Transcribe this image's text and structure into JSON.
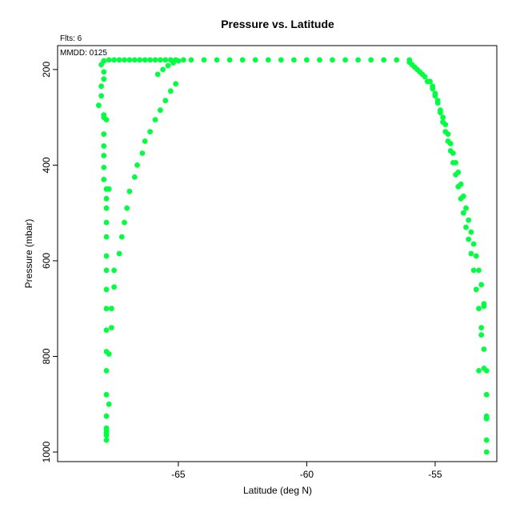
{
  "chart_data": {
    "type": "scatter",
    "title": "Pressure vs. Latitude",
    "subtitle_flts": "Flts: 6",
    "subtitle_mmdd": "MMDD: 0125",
    "xlabel": "Latitude (deg N)",
    "ylabel": "Pressure (mbar)",
    "xlim": [
      -69.7,
      -52.6
    ],
    "ylim": [
      1020,
      150
    ],
    "y_reversed": true,
    "xticks": [
      -65,
      -60,
      -55
    ],
    "yticks": [
      200,
      400,
      600,
      800,
      1000
    ],
    "grid": false,
    "point_color": "#00ff40",
    "series": [
      {
        "x": [
          -68.0,
          -68.1,
          -68.0,
          -68.0,
          -67.9,
          -67.9,
          -67.9,
          -67.9,
          -67.9,
          -67.9,
          -67.9,
          -67.9,
          -67.9,
          -67.8,
          -67.8,
          -67.8,
          -67.8,
          -67.8,
          -67.8,
          -67.8,
          -67.8,
          -67.8,
          -67.8,
          -67.8,
          -67.8,
          -67.8,
          -67.8,
          -67.8,
          -67.8,
          -67.8
        ],
        "y": [
          190,
          275,
          255,
          235,
          220,
          205,
          295,
          300,
          335,
          360,
          380,
          405,
          430,
          450,
          470,
          490,
          520,
          550,
          590,
          620,
          660,
          700,
          745,
          790,
          830,
          880,
          925,
          950,
          965,
          975
        ]
      },
      {
        "x": [
          -67.8,
          -67.8,
          -67.8,
          -67.7,
          -67.7,
          -67.7,
          -67.6,
          -67.6,
          -67.5,
          -67.5,
          -67.3,
          -67.2,
          -67.1,
          -67.0,
          -66.9,
          -66.7,
          -66.6,
          -66.4,
          -66.3,
          -66.1,
          -65.9,
          -65.7,
          -65.5,
          -65.3,
          -65.1
        ],
        "y": [
          955,
          960,
          305,
          450,
          900,
          795,
          740,
          700,
          655,
          620,
          585,
          550,
          520,
          490,
          455,
          425,
          400,
          375,
          350,
          330,
          305,
          285,
          265,
          245,
          230
        ]
      },
      {
        "x": [
          -67.9,
          -67.7,
          -67.5,
          -67.3,
          -67.1,
          -66.9,
          -66.7,
          -66.5,
          -66.3,
          -66.1,
          -65.9,
          -65.7,
          -65.5,
          -65.3,
          -65.1,
          -64.5,
          -64.0,
          -63.5,
          -63.0,
          -62.5,
          -62.0,
          -61.5,
          -61.0,
          -60.5,
          -60.0,
          -59.5,
          -59.0,
          -58.5,
          -58.0,
          -57.5,
          -57.0,
          -56.5,
          -56.0,
          -65.8,
          -65.6,
          -65.4,
          -65.2,
          -65.0,
          -64.8
        ],
        "y": [
          182,
          180,
          180,
          180,
          180,
          180,
          180,
          180,
          180,
          180,
          180,
          180,
          180,
          180,
          180,
          180,
          180,
          180,
          180,
          180,
          180,
          180,
          180,
          180,
          180,
          180,
          180,
          180,
          180,
          180,
          180,
          180,
          180,
          210,
          200,
          192,
          186,
          182,
          180
        ]
      },
      {
        "x": [
          -56.0,
          -55.8,
          -55.6,
          -55.4,
          -55.2,
          -55.1,
          -55.0,
          -54.9,
          -54.8,
          -54.7,
          -54.6,
          -54.5,
          -54.4,
          -54.3,
          -54.2,
          -54.1,
          -54.0,
          -53.9,
          -53.8,
          -53.7,
          -53.6,
          -53.5,
          -53.4,
          -53.3,
          -53.2,
          -53.1,
          -53.0,
          -53.0,
          -53.0
        ],
        "y": [
          185,
          195,
          205,
          215,
          225,
          240,
          255,
          270,
          285,
          300,
          315,
          335,
          355,
          375,
          395,
          415,
          440,
          465,
          490,
          515,
          540,
          565,
          590,
          620,
          650,
          690,
          830,
          930,
          975
        ]
      },
      {
        "x": [
          -55.9,
          -55.7,
          -55.5,
          -55.3,
          -55.1,
          -55.0,
          -54.9,
          -54.8,
          -54.7,
          -54.6,
          -54.5,
          -54.4,
          -54.3,
          -54.2,
          -54.1,
          -54.0,
          -53.9,
          -53.8,
          -53.7,
          -53.6,
          -53.5,
          -53.4,
          -53.3,
          -53.2,
          -53.1,
          -53.1,
          -53.0,
          -53.0
        ],
        "y": [
          190,
          200,
          210,
          225,
          235,
          250,
          265,
          290,
          310,
          330,
          350,
          370,
          395,
          420,
          445,
          470,
          500,
          530,
          555,
          585,
          620,
          660,
          700,
          740,
          785,
          825,
          880,
          1000
        ]
      },
      {
        "x": [
          -53.3,
          -53.2,
          -53.1,
          -53.0,
          -53.0
        ],
        "y": [
          830,
          755,
          695,
          925,
          930
        ]
      }
    ]
  }
}
